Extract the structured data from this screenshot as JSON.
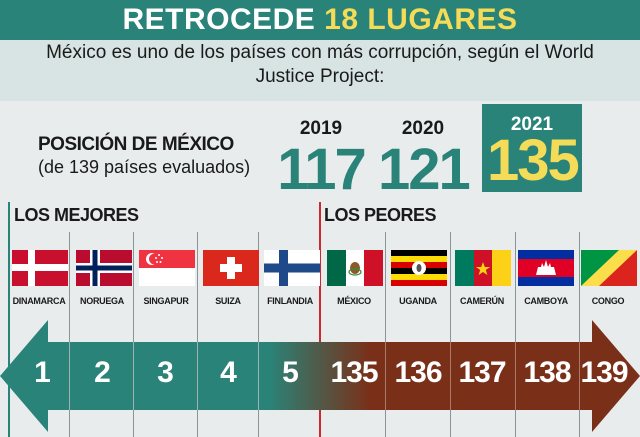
{
  "header": {
    "title_main": "RETROCEDE ",
    "title_highlight": "18 LUGARES",
    "subtitle": "México es uno de los países con más corrupción, según el World Justice Project:"
  },
  "position": {
    "label": "POSICIÓN DE MÉXICO",
    "sublabel": "(de 139 países evaluados)",
    "years": [
      {
        "year": "2019",
        "rank": "117"
      },
      {
        "year": "2020",
        "rank": "121"
      },
      {
        "year": "2021",
        "rank": "135"
      }
    ]
  },
  "best": {
    "label": "LOS MEJORES",
    "countries": [
      {
        "name": "DINAMARCA",
        "rank": "1",
        "flag": "denmark-flag"
      },
      {
        "name": "NORUEGA",
        "rank": "2",
        "flag": "norway-flag"
      },
      {
        "name": "SINGAPUR",
        "rank": "3",
        "flag": "singapore-flag"
      },
      {
        "name": "SUIZA",
        "rank": "4",
        "flag": "switzerland-flag"
      },
      {
        "name": "FINLANDIA",
        "rank": "5",
        "flag": "finland-flag"
      }
    ]
  },
  "worst": {
    "label": "LOS PEORES",
    "countries": [
      {
        "name": "MÉXICO",
        "rank": "135",
        "flag": "mexico-flag"
      },
      {
        "name": "UGANDA",
        "rank": "136",
        "flag": "uganda-flag"
      },
      {
        "name": "CAMERÚN",
        "rank": "137",
        "flag": "cameroon-flag"
      },
      {
        "name": "CAMBOYA",
        "rank": "138",
        "flag": "cambodia-flag"
      },
      {
        "name": "CONGO",
        "rank": "139",
        "flag": "congo-flag"
      }
    ]
  },
  "colors": {
    "teal": "#2a8378",
    "yellow": "#f4dc59",
    "brown": "#7a2f18",
    "red": "#cf2a2a"
  }
}
